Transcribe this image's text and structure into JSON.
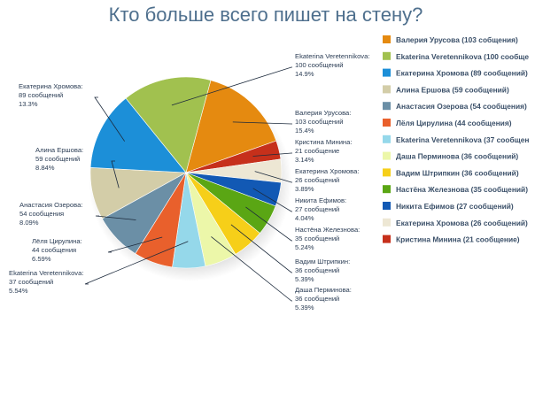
{
  "chart_data": {
    "type": "pie",
    "title": "Кто больше всего пишет на стену?",
    "slices": [
      {
        "name": "Валерия Урусова",
        "value": 103,
        "unit": "сообщений",
        "percent": "15.4%",
        "color": "#e58a10",
        "legend": "Валерия Урусова (103 собщения)"
      },
      {
        "name": "Кристина Минина",
        "value": 21,
        "unit": "сообщение",
        "percent": "3.14%",
        "color": "#c6301b",
        "legend": "Кристина Минина (21 сообщение)"
      },
      {
        "name": "Екатерина Хромова",
        "value": 26,
        "unit": "сообщений",
        "percent": "3.89%",
        "color": "#ede7d4",
        "legend": "Екатерина Хромова (26 сообщений)"
      },
      {
        "name": "Никита Ефимов",
        "value": 27,
        "unit": "сообщений",
        "percent": "4.04%",
        "color": "#1259b4",
        "legend": "Никита Ефимов (27 сообщений)"
      },
      {
        "name": "Настёна Железнова",
        "value": 35,
        "unit": "сообщений",
        "percent": "5.24%",
        "color": "#5aa614",
        "legend": "Настёна Железнова (35 сообщений)"
      },
      {
        "name": "Вадим Штрипкин",
        "value": 36,
        "unit": "сообщений",
        "percent": "5.39%",
        "color": "#f6cf19",
        "legend": "Вадим Штрипкин (36 сообщений)"
      },
      {
        "name": "Даша Перминова",
        "value": 36,
        "unit": "сообщений",
        "percent": "5.39%",
        "color": "#ecf7a9",
        "legend": "Даша Перминова (36 сообщений)"
      },
      {
        "name": "Ekaterina Veretennikova",
        "value": 37,
        "unit": "сообщений",
        "percent": "5.54%",
        "color": "#95d8ea",
        "legend": "Ekaterina Veretennikova (37 сообщен"
      },
      {
        "name": "Лёля Цирулина",
        "value": 44,
        "unit": "сообщения",
        "percent": "6.59%",
        "color": "#e9602c",
        "legend": "Лёля Цирулина (44 сообщения)"
      },
      {
        "name": "Анастасия Озерова",
        "value": 54,
        "unit": "сообщения",
        "percent": "8.09%",
        "color": "#6b8fa6",
        "legend": "Анастасия Озерова (54 сообщения)"
      },
      {
        "name": "Алина Ершова",
        "value": 59,
        "unit": "сообщений",
        "percent": "8.84%",
        "color": "#d3cda8",
        "legend": "Алина Ершова (59 сообщений)"
      },
      {
        "name": "Екатерина Хромова",
        "value": 89,
        "unit": "сообщений",
        "percent": "13.3%",
        "color": "#1c8fd8",
        "legend": "Екатерина Хромова (89 сообщений)"
      },
      {
        "name": "Ekaterina Veretennikova",
        "value": 100,
        "unit": "сообщений",
        "percent": "14.9%",
        "color": "#a1c14f",
        "legend": "Ekaterina Veretennikova (100 сообще"
      }
    ],
    "legend_order": [
      0,
      12,
      11,
      10,
      9,
      8,
      7,
      6,
      5,
      4,
      3,
      2,
      1
    ],
    "legend_position": "right"
  }
}
